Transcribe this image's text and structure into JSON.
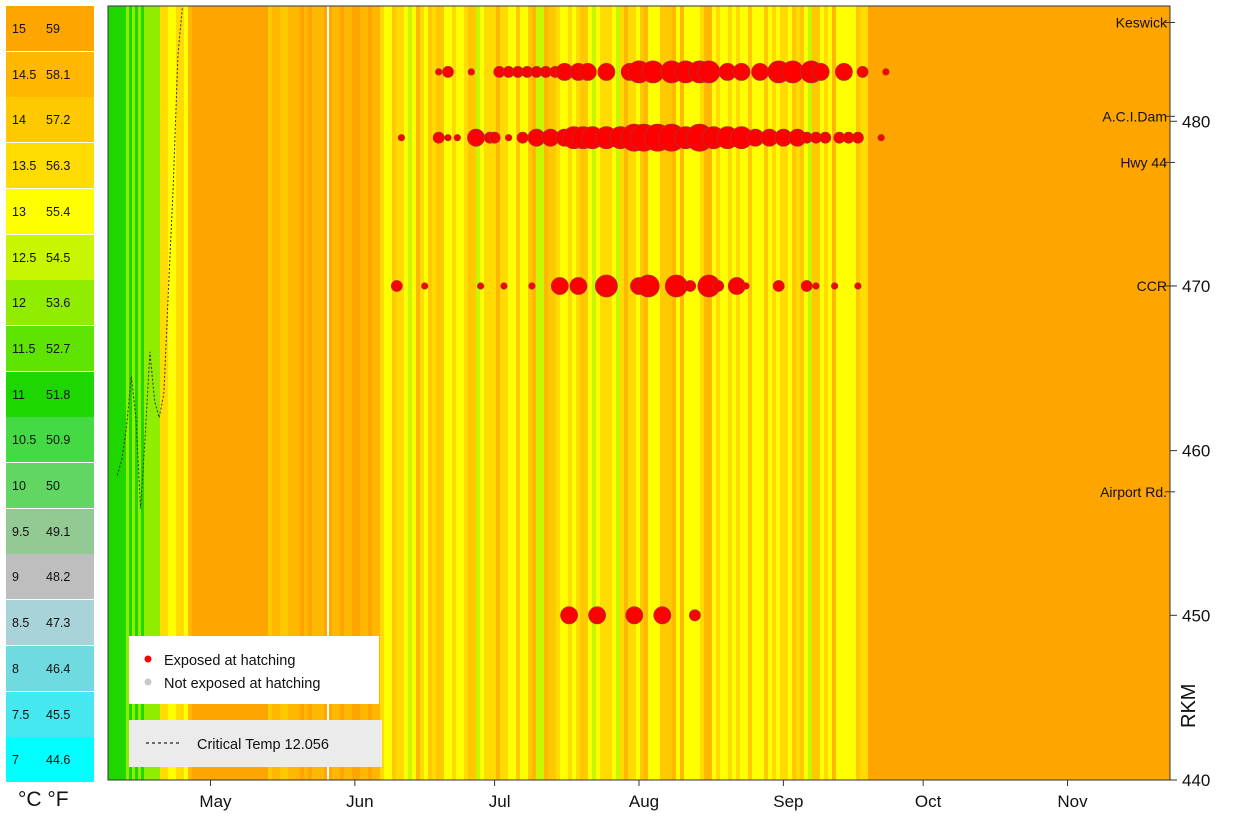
{
  "chart_data": {
    "type": "heatmap",
    "title": "",
    "xlabel": "",
    "ylabel": "RKM",
    "ylim": [
      440,
      487
    ],
    "x_ticks": [
      "May",
      "Jun",
      "Jul",
      "Aug",
      "Sep",
      "Oct",
      "Nov"
    ],
    "y_ticks": [
      440,
      450,
      460,
      470,
      480
    ],
    "sites": [
      {
        "name": "Keswick",
        "rkm": 486
      },
      {
        "name": "A.C.I.Dam",
        "rkm": 480.3
      },
      {
        "name": "Hwy 44",
        "rkm": 477.5
      },
      {
        "name": "CCR",
        "rkm": 470
      },
      {
        "name": "Airport Rd.",
        "rkm": 457.5
      }
    ],
    "temperature_scale": [
      {
        "c": "15",
        "f": "59",
        "color": "#ffa500"
      },
      {
        "c": "14.5",
        "f": "58.1",
        "color": "#ffb700"
      },
      {
        "c": "14",
        "f": "57.2",
        "color": "#ffc900"
      },
      {
        "c": "13.5",
        "f": "56.3",
        "color": "#ffdb00"
      },
      {
        "c": "13",
        "f": "55.4",
        "color": "#ffff00"
      },
      {
        "c": "12.5",
        "f": "54.5",
        "color": "#c8f500"
      },
      {
        "c": "12",
        "f": "53.6",
        "color": "#90ed00"
      },
      {
        "c": "11.5",
        "f": "52.7",
        "color": "#5ee400"
      },
      {
        "c": "11",
        "f": "51.8",
        "color": "#1ed700"
      },
      {
        "c": "10.5",
        "f": "50.9",
        "color": "#44da44"
      },
      {
        "c": "10",
        "f": "50",
        "color": "#62d662"
      },
      {
        "c": "9.5",
        "f": "49.1",
        "color": "#93c993"
      },
      {
        "c": "9",
        "f": "48.2",
        "color": "#bebebe"
      },
      {
        "c": "8.5",
        "f": "47.3",
        "color": "#a8d3d8"
      },
      {
        "c": "8",
        "f": "46.4",
        "color": "#6fdbe0"
      },
      {
        "c": "7.5",
        "f": "45.5",
        "color": "#45e8ee"
      },
      {
        "c": "7",
        "f": "44.6",
        "color": "#00ffff"
      }
    ],
    "units_label": "°C °F",
    "series": [
      {
        "name": "Exposed at hatching",
        "color": "#ff0000"
      },
      {
        "name": "Not exposed at hatching",
        "color": "#c8c8c8"
      }
    ],
    "critical_temp_label": "Critical Temp 12.056",
    "critical_temp": 12.056,
    "exposed_points": [
      {
        "date": "Jun 10",
        "rkm": 470,
        "size": 2
      },
      {
        "date": "Jun 16",
        "rkm": 470,
        "size": 1
      },
      {
        "date": "Jun 28",
        "rkm": 470,
        "size": 1
      },
      {
        "date": "Jul 3",
        "rkm": 470,
        "size": 1
      },
      {
        "date": "Jul 9",
        "rkm": 470,
        "size": 1
      },
      {
        "date": "Jul 15",
        "rkm": 470,
        "size": 3
      },
      {
        "date": "Jul 19",
        "rkm": 470,
        "size": 3
      },
      {
        "date": "Jul 25",
        "rkm": 470,
        "size": 4
      },
      {
        "date": "Aug 1",
        "rkm": 470,
        "size": 3
      },
      {
        "date": "Aug 3",
        "rkm": 470,
        "size": 4
      },
      {
        "date": "Aug 9",
        "rkm": 470,
        "size": 4
      },
      {
        "date": "Aug 12",
        "rkm": 470,
        "size": 2
      },
      {
        "date": "Aug 16",
        "rkm": 470,
        "size": 4
      },
      {
        "date": "Aug 18",
        "rkm": 470,
        "size": 2
      },
      {
        "date": "Aug 22",
        "rkm": 470,
        "size": 3
      },
      {
        "date": "Aug 24",
        "rkm": 470,
        "size": 1
      },
      {
        "date": "Aug 31",
        "rkm": 470,
        "size": 2
      },
      {
        "date": "Sep 6",
        "rkm": 470,
        "size": 2
      },
      {
        "date": "Sep 8",
        "rkm": 470,
        "size": 1
      },
      {
        "date": "Sep 12",
        "rkm": 470,
        "size": 1
      },
      {
        "date": "Sep 17",
        "rkm": 470,
        "size": 1
      },
      {
        "date": "Jul 17",
        "rkm": 450,
        "size": 3
      },
      {
        "date": "Jul 23",
        "rkm": 450,
        "size": 3
      },
      {
        "date": "Jul 31",
        "rkm": 450,
        "size": 3
      },
      {
        "date": "Aug 6",
        "rkm": 450,
        "size": 3
      },
      {
        "date": "Aug 13",
        "rkm": 450,
        "size": 2
      },
      {
        "date": "Jun 11",
        "rkm": 479,
        "size": 1
      },
      {
        "date": "Jun 19",
        "rkm": 479,
        "size": 2
      },
      {
        "date": "Jun 21",
        "rkm": 479,
        "size": 1
      },
      {
        "date": "Jun 23",
        "rkm": 479,
        "size": 1
      },
      {
        "date": "Jun 27",
        "rkm": 479,
        "size": 3
      },
      {
        "date": "Jun 30",
        "rkm": 479,
        "size": 2
      },
      {
        "date": "Jul 1",
        "rkm": 479,
        "size": 2
      },
      {
        "date": "Jul 4",
        "rkm": 479,
        "size": 1
      },
      {
        "date": "Jul 7",
        "rkm": 479,
        "size": 2
      },
      {
        "date": "Jul 10",
        "rkm": 479,
        "size": 3
      },
      {
        "date": "Jul 13",
        "rkm": 479,
        "size": 3
      },
      {
        "date": "Jul 16",
        "rkm": 479,
        "size": 3
      },
      {
        "date": "Jul 18",
        "rkm": 479,
        "size": 4
      },
      {
        "date": "Jul 20",
        "rkm": 479,
        "size": 4
      },
      {
        "date": "Jul 22",
        "rkm": 479,
        "size": 4
      },
      {
        "date": "Jul 25",
        "rkm": 479,
        "size": 4
      },
      {
        "date": "Jul 28",
        "rkm": 479,
        "size": 4
      },
      {
        "date": "Jul 31",
        "rkm": 479,
        "size": 5
      },
      {
        "date": "Aug 2",
        "rkm": 479,
        "size": 5
      },
      {
        "date": "Aug 5",
        "rkm": 479,
        "size": 5
      },
      {
        "date": "Aug 8",
        "rkm": 479,
        "size": 5
      },
      {
        "date": "Aug 11",
        "rkm": 479,
        "size": 4
      },
      {
        "date": "Aug 14",
        "rkm": 479,
        "size": 5
      },
      {
        "date": "Aug 17",
        "rkm": 479,
        "size": 4
      },
      {
        "date": "Aug 20",
        "rkm": 479,
        "size": 4
      },
      {
        "date": "Aug 23",
        "rkm": 479,
        "size": 4
      },
      {
        "date": "Aug 26",
        "rkm": 479,
        "size": 3
      },
      {
        "date": "Aug 29",
        "rkm": 479,
        "size": 3
      },
      {
        "date": "Sep 1",
        "rkm": 479,
        "size": 3
      },
      {
        "date": "Sep 4",
        "rkm": 479,
        "size": 3
      },
      {
        "date": "Sep 6",
        "rkm": 479,
        "size": 2
      },
      {
        "date": "Sep 8",
        "rkm": 479,
        "size": 2
      },
      {
        "date": "Sep 10",
        "rkm": 479,
        "size": 2
      },
      {
        "date": "Sep 13",
        "rkm": 479,
        "size": 2
      },
      {
        "date": "Sep 15",
        "rkm": 479,
        "size": 2
      },
      {
        "date": "Sep 17",
        "rkm": 479,
        "size": 2
      },
      {
        "date": "Sep 22",
        "rkm": 479,
        "size": 1
      },
      {
        "date": "Jun 19",
        "rkm": 483,
        "size": 1
      },
      {
        "date": "Jun 21",
        "rkm": 483,
        "size": 2
      },
      {
        "date": "Jun 26",
        "rkm": 483,
        "size": 1
      },
      {
        "date": "Jul 2",
        "rkm": 483,
        "size": 2
      },
      {
        "date": "Jul 4",
        "rkm": 483,
        "size": 2
      },
      {
        "date": "Jul 6",
        "rkm": 483,
        "size": 2
      },
      {
        "date": "Jul 8",
        "rkm": 483,
        "size": 2
      },
      {
        "date": "Jul 10",
        "rkm": 483,
        "size": 2
      },
      {
        "date": "Jul 12",
        "rkm": 483,
        "size": 2
      },
      {
        "date": "Jul 14",
        "rkm": 483,
        "size": 2
      },
      {
        "date": "Jul 16",
        "rkm": 483,
        "size": 3
      },
      {
        "date": "Jul 19",
        "rkm": 483,
        "size": 3
      },
      {
        "date": "Jul 21",
        "rkm": 483,
        "size": 3
      },
      {
        "date": "Jul 25",
        "rkm": 483,
        "size": 3
      },
      {
        "date": "Jul 30",
        "rkm": 483,
        "size": 3
      },
      {
        "date": "Aug 1",
        "rkm": 483,
        "size": 4
      },
      {
        "date": "Aug 4",
        "rkm": 483,
        "size": 4
      },
      {
        "date": "Aug 8",
        "rkm": 483,
        "size": 4
      },
      {
        "date": "Aug 11",
        "rkm": 483,
        "size": 4
      },
      {
        "date": "Aug 14",
        "rkm": 483,
        "size": 4
      },
      {
        "date": "Aug 16",
        "rkm": 483,
        "size": 4
      },
      {
        "date": "Aug 20",
        "rkm": 483,
        "size": 3
      },
      {
        "date": "Aug 23",
        "rkm": 483,
        "size": 3
      },
      {
        "date": "Aug 27",
        "rkm": 483,
        "size": 3
      },
      {
        "date": "Aug 31",
        "rkm": 483,
        "size": 4
      },
      {
        "date": "Sep 3",
        "rkm": 483,
        "size": 4
      },
      {
        "date": "Sep 7",
        "rkm": 483,
        "size": 4
      },
      {
        "date": "Sep 9",
        "rkm": 483,
        "size": 3
      },
      {
        "date": "Sep 14",
        "rkm": 483,
        "size": 3
      },
      {
        "date": "Sep 18",
        "rkm": 483,
        "size": 2
      },
      {
        "date": "Sep 23",
        "rkm": 483,
        "size": 1
      }
    ],
    "critical_temp_curve": [
      {
        "date": "Apr 11",
        "rkm": 458.5
      },
      {
        "date": "Apr 12",
        "rkm": 459.5
      },
      {
        "date": "Apr 13",
        "rkm": 461.5
      },
      {
        "date": "Apr 14",
        "rkm": 464.5
      },
      {
        "date": "Apr 15",
        "rkm": 462
      },
      {
        "date": "Apr 16",
        "rkm": 456.5
      },
      {
        "date": "Apr 17",
        "rkm": 461
      },
      {
        "date": "Apr 18",
        "rkm": 466
      },
      {
        "date": "Apr 19",
        "rkm": 463
      },
      {
        "date": "Apr 20",
        "rkm": 462
      },
      {
        "date": "Apr 21",
        "rkm": 463.5
      },
      {
        "date": "Apr 22",
        "rkm": 470
      },
      {
        "date": "Apr 23",
        "rkm": 476
      },
      {
        "date": "Apr 24",
        "rkm": 484
      },
      {
        "date": "Apr 25",
        "rkm": 487
      }
    ],
    "grid": false,
    "legend_position": "bottom-left"
  }
}
